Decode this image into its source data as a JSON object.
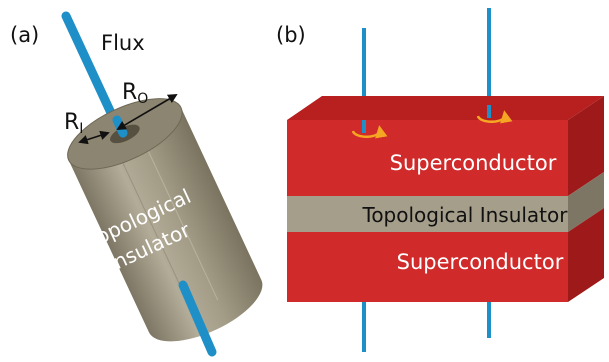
{
  "panel_a": {
    "tag": "(a)",
    "flux_label": "Flux",
    "outer_radius": {
      "main": "R",
      "sub": "O"
    },
    "inner_radius": {
      "main": "R",
      "sub": "I"
    },
    "body_text_line1": "Topological",
    "body_text_line2": "Insulator"
  },
  "panel_b": {
    "tag": "(b)",
    "top_layer": "Superconductor",
    "middle_layer": "Topological Insulator",
    "bottom_layer": "Superconductor"
  },
  "colors": {
    "flux_tube": "#1f8fc8",
    "insulator": "#a59e8a",
    "superconductor": "#d02a2a",
    "vortex_arrow": "#f5a623"
  }
}
